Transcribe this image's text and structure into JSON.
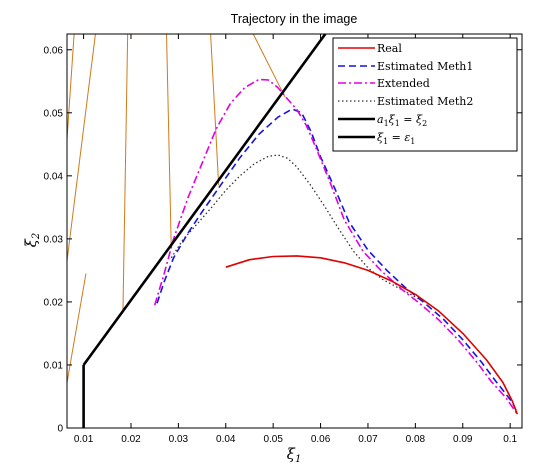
{
  "chart_data": {
    "type": "line",
    "title": "Trajectory in the image",
    "xlabel": "ξ1",
    "ylabel": "ξ2",
    "xlim": [
      0.0065,
      0.1025
    ],
    "ylim": [
      0,
      0.0625
    ],
    "xticks": [
      0.01,
      0.02,
      0.03,
      0.04,
      0.05,
      0.06,
      0.07,
      0.08,
      0.09,
      0.1
    ],
    "yticks": [
      0,
      0.01,
      0.02,
      0.03,
      0.04,
      0.05,
      0.06
    ],
    "xtick_labels": [
      "0.01",
      "0.02",
      "0.03",
      "0.04",
      "0.05",
      "0.06",
      "0.07",
      "0.08",
      "0.09",
      "0.1"
    ],
    "ytick_labels": [
      "0",
      "0.01",
      "0.02",
      "0.03",
      "0.04",
      "0.05",
      "0.06"
    ],
    "grid": false,
    "legend_position": "top-right",
    "hatch": {
      "color": "#d07a1a",
      "lines": [
        {
          "x": [
            0.0065,
            0.0105
          ],
          "y": [
            0.0072,
            0.0245
          ]
        },
        {
          "x": [
            0.0065,
            0.0125
          ],
          "y": [
            0.0265,
            0.0625
          ]
        },
        {
          "x": [
            0.0065,
            0.008
          ],
          "y": [
            0.0458,
            0.0625
          ]
        },
        {
          "x": [
            0.0183,
            0.0193
          ],
          "y": [
            0.0183,
            0.0625
          ]
        },
        {
          "x": [
            0.0285,
            0.0275
          ],
          "y": [
            0.0285,
            0.0625
          ]
        },
        {
          "x": [
            0.0365,
            0.0255
          ],
          "y": [
            0.0625,
            0.0625
          ]
        },
        {
          "x": [
            0.0385,
            0.0368
          ],
          "y": [
            0.0385,
            0.0625
          ]
        },
        {
          "x": [
            0.0525,
            0.0458
          ],
          "y": [
            0.0525,
            0.0625
          ]
        }
      ]
    },
    "series": [
      {
        "name": "Real",
        "color": "#e00000",
        "dash": "solid",
        "width": 1.6,
        "x": [
          0.04,
          0.045,
          0.05,
          0.055,
          0.06,
          0.065,
          0.07,
          0.075,
          0.08,
          0.085,
          0.09,
          0.095,
          0.0985,
          0.1005,
          0.1015
        ],
        "y": [
          0.0255,
          0.0267,
          0.0272,
          0.0273,
          0.027,
          0.0262,
          0.025,
          0.0233,
          0.0212,
          0.0185,
          0.015,
          0.0108,
          0.0072,
          0.0042,
          0.0022
        ]
      },
      {
        "name": "Estimated Meth1",
        "color": "#1515e0",
        "dash": "7,4",
        "width": 1.6,
        "x": [
          0.0255,
          0.027,
          0.029,
          0.032,
          0.035,
          0.039,
          0.043,
          0.047,
          0.051,
          0.054,
          0.056,
          0.058,
          0.06,
          0.063,
          0.066,
          0.07,
          0.074,
          0.078,
          0.082,
          0.086,
          0.09,
          0.094,
          0.097,
          0.099,
          0.1005,
          0.1015
        ],
        "y": [
          0.0198,
          0.0232,
          0.027,
          0.0309,
          0.0343,
          0.0386,
          0.0429,
          0.0466,
          0.0493,
          0.0506,
          0.05,
          0.047,
          0.043,
          0.038,
          0.0327,
          0.0282,
          0.025,
          0.0222,
          0.0198,
          0.0172,
          0.014,
          0.0104,
          0.0074,
          0.0055,
          0.004,
          0.0024
        ]
      },
      {
        "name": "Extended",
        "color": "#e000e0",
        "dash": "8,3,2,3",
        "width": 1.6,
        "x": [
          0.025,
          0.027,
          0.029,
          0.032,
          0.035,
          0.038,
          0.041,
          0.044,
          0.047,
          0.049,
          0.051,
          0.053,
          0.055,
          0.057,
          0.059,
          0.062,
          0.065,
          0.069,
          0.073,
          0.077,
          0.081,
          0.085,
          0.089,
          0.093,
          0.096,
          0.099,
          0.1015
        ],
        "y": [
          0.0195,
          0.0245,
          0.03,
          0.0365,
          0.042,
          0.0475,
          0.0515,
          0.054,
          0.0553,
          0.0552,
          0.054,
          0.0522,
          0.0505,
          0.048,
          0.0445,
          0.039,
          0.033,
          0.028,
          0.0248,
          0.0221,
          0.0197,
          0.0171,
          0.014,
          0.0104,
          0.0074,
          0.0049,
          0.0022
        ]
      },
      {
        "name": "Estimated Meth2",
        "color": "#333333",
        "dash": "1.5,2.5",
        "width": 1.3,
        "x": [
          0.0285,
          0.031,
          0.034,
          0.037,
          0.04,
          0.043,
          0.046,
          0.049,
          0.051,
          0.053,
          0.055,
          0.058,
          0.061,
          0.064,
          0.067,
          0.07,
          0.073,
          0.076,
          0.079,
          0.082
        ],
        "y": [
          0.027,
          0.0299,
          0.0324,
          0.035,
          0.0377,
          0.04,
          0.0419,
          0.0431,
          0.0433,
          0.0428,
          0.0414,
          0.0384,
          0.035,
          0.0314,
          0.028,
          0.0254,
          0.0236,
          0.0224,
          0.0212,
          0.02
        ]
      },
      {
        "name": "a1ξ1 = ξ2",
        "color": "#000000",
        "dash": "solid",
        "width": 2.6,
        "x": [
          0.01,
          0.061
        ],
        "y": [
          0.01,
          0.0625
        ]
      },
      {
        "name": "ξ1 = ε1",
        "color": "#000000",
        "dash": "solid",
        "width": 2.6,
        "x": [
          0.01,
          0.01
        ],
        "y": [
          0.0,
          0.01
        ]
      }
    ]
  }
}
